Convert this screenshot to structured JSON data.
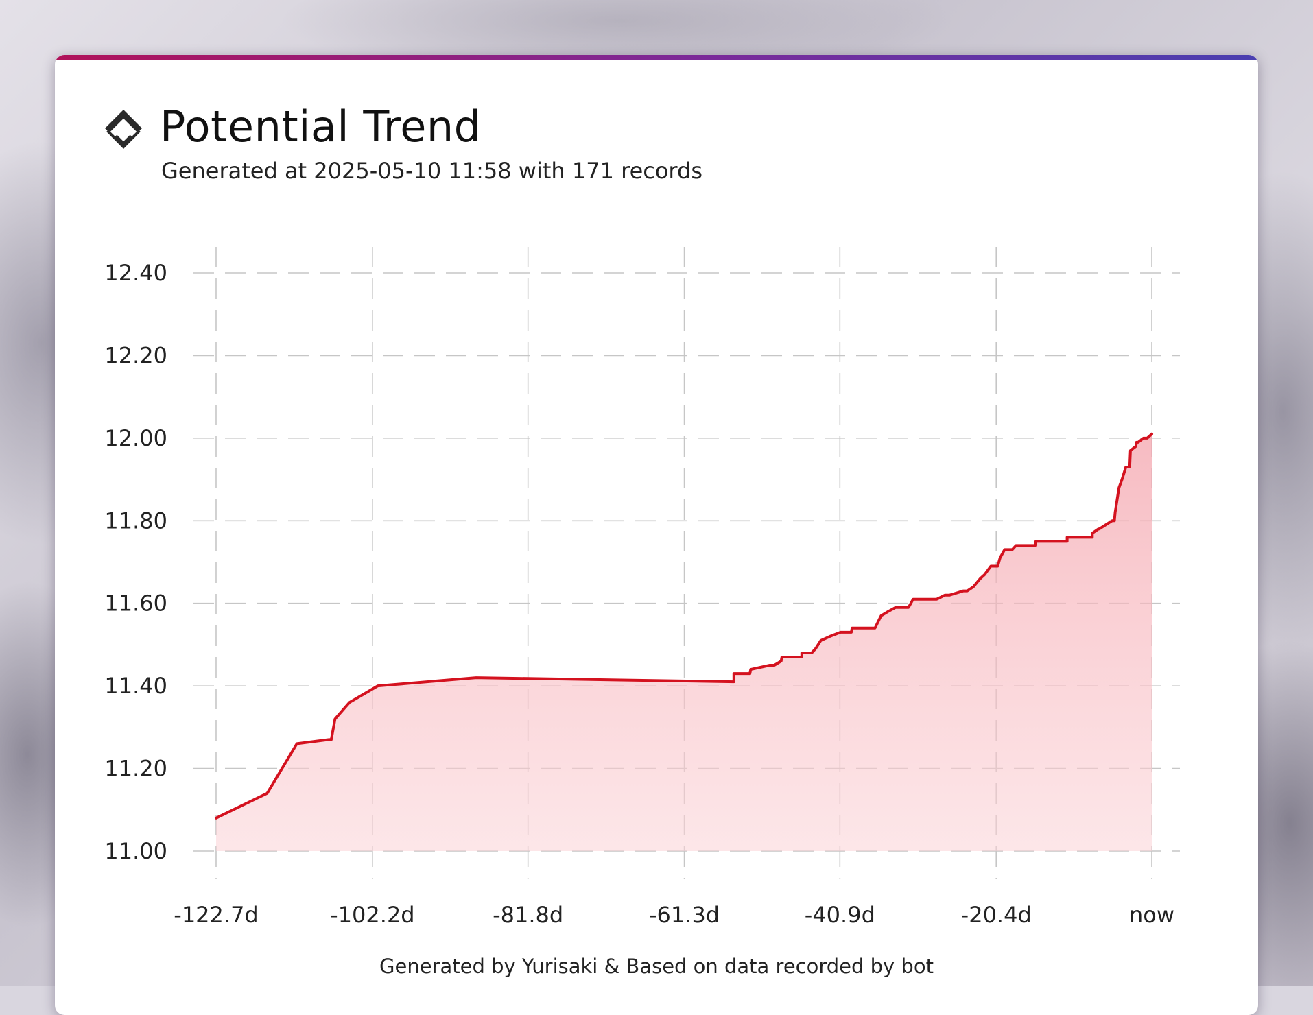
{
  "header": {
    "title": "Potential Trend",
    "subtitle": "Generated at 2025-05-10 11:58 with 171 records",
    "icon": "potential-chevrons-icon"
  },
  "footer": {
    "text": "Generated by Yurisaki & Based on data recorded by bot"
  },
  "colors": {
    "accent_start": "#b0125a",
    "accent_end": "#4a3fb0",
    "line": "#d4121f",
    "fill": "#f7b9c0",
    "grid": "#c6c6c6"
  },
  "chart_data": {
    "type": "area",
    "title": "",
    "xlabel": "",
    "ylabel": "",
    "grid": true,
    "legend": "none",
    "xlim": [
      -122.7,
      0
    ],
    "ylim": [
      11.0,
      12.4
    ],
    "x_ticks": [
      -122.7,
      -102.2,
      -81.8,
      -61.3,
      -40.9,
      -20.4,
      0
    ],
    "x_tick_labels": [
      "-122.7d",
      "-102.2d",
      "-81.8d",
      "-61.3d",
      "-40.9d",
      "-20.4d",
      "now"
    ],
    "y_ticks": [
      11.0,
      11.2,
      11.4,
      11.6,
      11.8,
      12.0,
      12.2,
      12.4
    ],
    "y_tick_labels": [
      "11.00",
      "11.20",
      "11.40",
      "11.60",
      "11.80",
      "12.00",
      "12.20",
      "12.40"
    ],
    "series": [
      {
        "x": [
          -122.7,
          -116.0,
          -112.1,
          -107.9,
          -107.6,
          -107.1,
          -105.2,
          -101.5,
          -88.6,
          -54.8,
          -54.8,
          -52.7,
          -52.6,
          -50.1,
          -49.5,
          -48.6,
          -48.5,
          -47.5,
          -47.2,
          -45.9,
          -45.9,
          -44.6,
          -44.1,
          -43.4,
          -42.2,
          -40.8,
          -39.4,
          -39.3,
          -36.3,
          -35.5,
          -34.6,
          -33.6,
          -33.0,
          -31.9,
          -31.3,
          -28.2,
          -27.1,
          -26.5,
          -24.7,
          -24.2,
          -23.4,
          -22.5,
          -21.9,
          -21.1,
          -20.2,
          -19.9,
          -19.3,
          -18.3,
          -17.8,
          -17.7,
          -16.9,
          -16.6,
          -15.3,
          -15.2,
          -11.1,
          -11.1,
          -7.8,
          -7.8,
          -7.0,
          -6.9,
          -5.2,
          -4.9,
          -4.8,
          -4.3,
          -3.9,
          -3.4,
          -2.9,
          -2.8,
          -2.1,
          -2.0,
          -1.8,
          -1.1,
          -0.9,
          -0.6,
          0.0
        ],
        "y": [
          11.08,
          11.14,
          11.26,
          11.27,
          11.27,
          11.32,
          11.36,
          11.4,
          11.42,
          11.41,
          11.43,
          11.43,
          11.44,
          11.45,
          11.45,
          11.46,
          11.47,
          11.47,
          11.47,
          11.47,
          11.48,
          11.48,
          11.49,
          11.51,
          11.52,
          11.53,
          11.53,
          11.54,
          11.54,
          11.57,
          11.58,
          11.59,
          11.59,
          11.59,
          11.61,
          11.61,
          11.62,
          11.62,
          11.63,
          11.63,
          11.64,
          11.66,
          11.67,
          11.69,
          11.69,
          11.71,
          11.73,
          11.73,
          11.74,
          11.74,
          11.74,
          11.74,
          11.74,
          11.75,
          11.75,
          11.76,
          11.76,
          11.77,
          11.78,
          11.78,
          11.8,
          11.8,
          11.82,
          11.88,
          11.9,
          11.93,
          11.93,
          11.97,
          11.98,
          11.99,
          11.99,
          12.0,
          12.0,
          12.0,
          12.01
        ]
      }
    ]
  }
}
